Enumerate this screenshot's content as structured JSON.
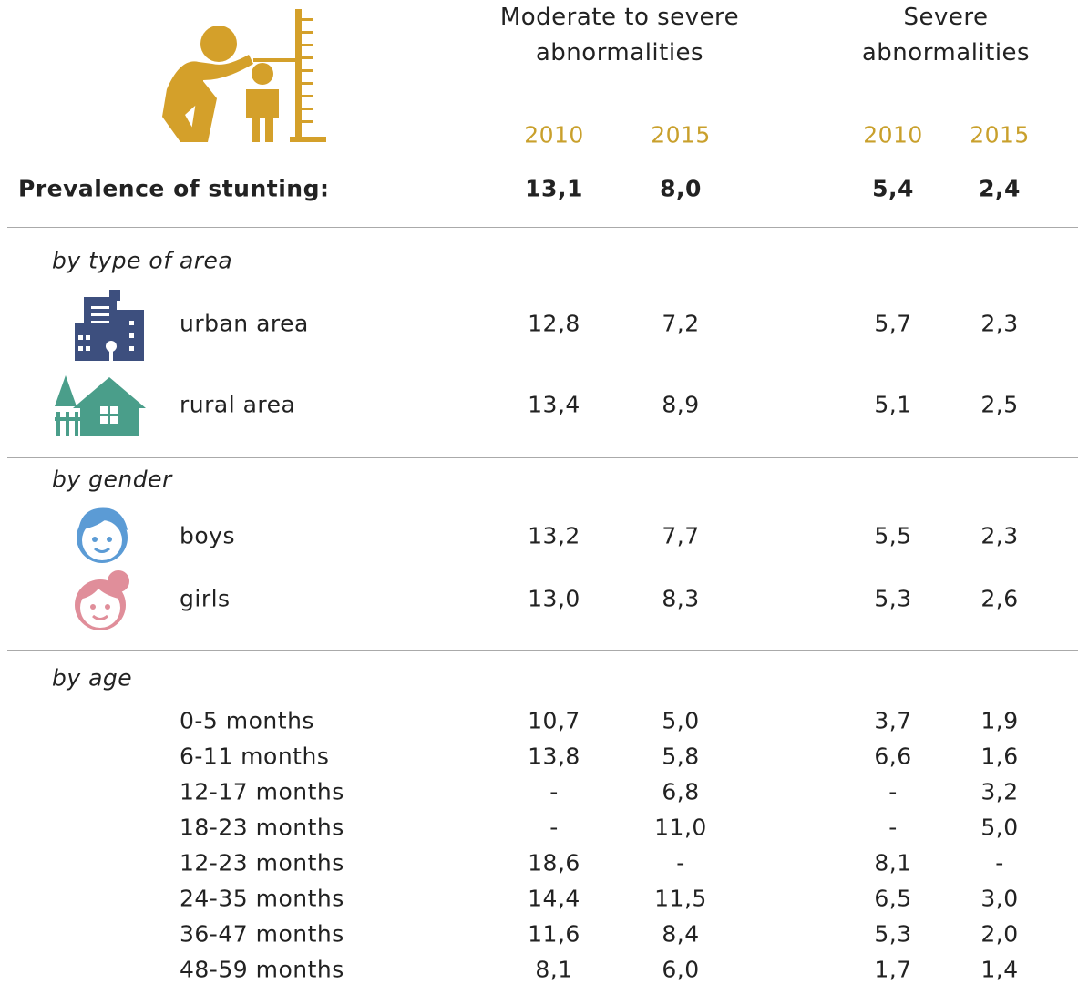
{
  "header": {
    "groups": [
      "Moderate to severe abnormalities",
      "Severe abnormalities"
    ],
    "years": [
      "2010",
      "2015",
      "2010",
      "2015"
    ]
  },
  "summary": {
    "label": "Prevalence of stunting:",
    "values": [
      "13,1",
      "8,0",
      "5,4",
      "2,4"
    ]
  },
  "sections": [
    {
      "title": "by type of area",
      "rows": [
        {
          "label": "urban area",
          "values": [
            "12,8",
            "7,2",
            "5,7",
            "2,3"
          ]
        },
        {
          "label": "rural area",
          "values": [
            "13,4",
            "8,9",
            "5,1",
            "2,5"
          ]
        }
      ]
    },
    {
      "title": "by gender",
      "rows": [
        {
          "label": "boys",
          "values": [
            "13,2",
            "7,7",
            "5,5",
            "2,3"
          ]
        },
        {
          "label": "girls",
          "values": [
            "13,0",
            "8,3",
            "5,3",
            "2,6"
          ]
        }
      ]
    },
    {
      "title": "by age",
      "rows": [
        {
          "label": "0-5 months",
          "values": [
            "10,7",
            "5,0",
            "3,7",
            "1,9"
          ]
        },
        {
          "label": "6-11 months",
          "values": [
            "13,8",
            "5,8",
            "6,6",
            "1,6"
          ]
        },
        {
          "label": "12-17 months",
          "values": [
            "-",
            "6,8",
            "-",
            "3,2"
          ]
        },
        {
          "label": "18-23 months",
          "values": [
            "-",
            "11,0",
            "-",
            "5,0"
          ]
        },
        {
          "label": "12-23 months",
          "values": [
            "18,6",
            "-",
            "8,1",
            "-"
          ]
        },
        {
          "label": "24-35 months",
          "values": [
            "14,4",
            "11,5",
            "6,5",
            "3,0"
          ]
        },
        {
          "label": "36-47 months",
          "values": [
            "11,6",
            "8,4",
            "5,3",
            "2,0"
          ]
        },
        {
          "label": "48-59 months",
          "values": [
            "8,1",
            "6,0",
            "1,7",
            "1,4"
          ]
        }
      ]
    }
  ]
}
